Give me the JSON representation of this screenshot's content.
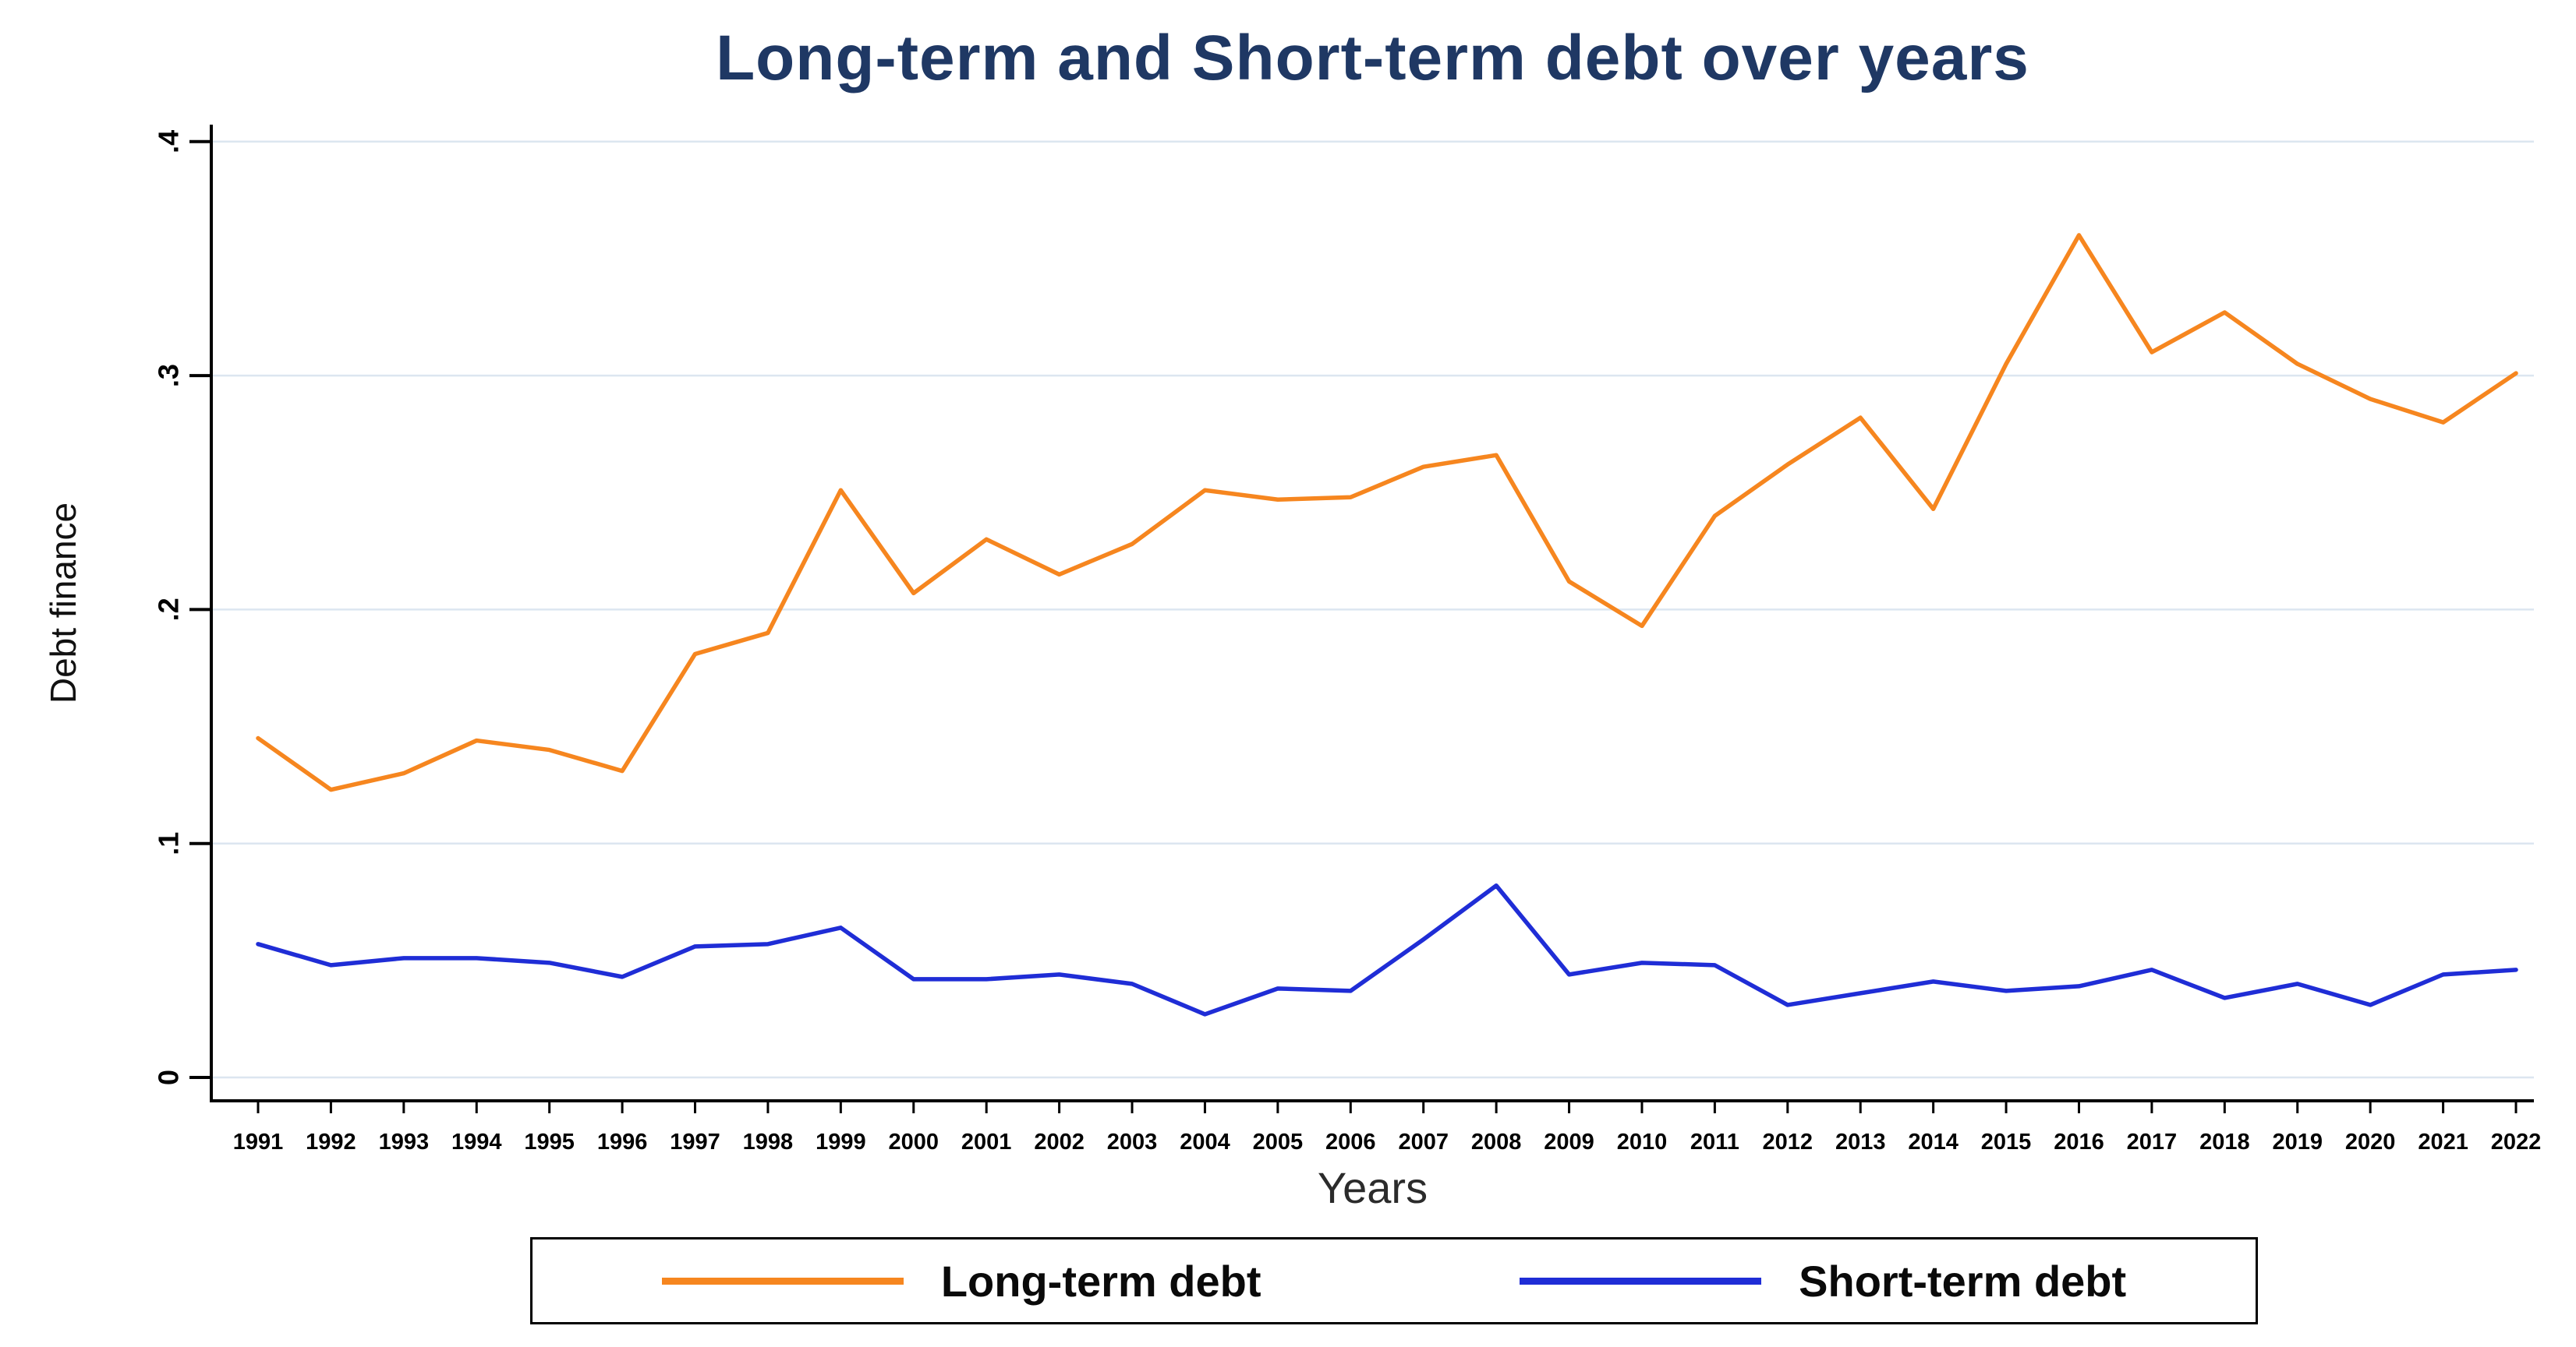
{
  "chart_data": {
    "type": "line",
    "title": "Long-term and Short-term debt over years",
    "xlabel": "Years",
    "ylabel": "Debt finance",
    "x": [
      1991,
      1992,
      1993,
      1994,
      1995,
      1996,
      1997,
      1998,
      1999,
      2000,
      2001,
      2002,
      2003,
      2004,
      2005,
      2006,
      2007,
      2008,
      2009,
      2010,
      2011,
      2012,
      2013,
      2014,
      2015,
      2016,
      2017,
      2018,
      2019,
      2020,
      2021,
      2022
    ],
    "series": [
      {
        "name": "Long-term debt",
        "color": "#F6861F",
        "values": [
          0.145,
          0.123,
          0.13,
          0.144,
          0.14,
          0.131,
          0.181,
          0.19,
          0.251,
          0.207,
          0.23,
          0.215,
          0.228,
          0.251,
          0.247,
          0.248,
          0.261,
          0.266,
          0.212,
          0.193,
          0.24,
          0.262,
          0.282,
          0.243,
          0.305,
          0.36,
          0.31,
          0.327,
          0.305,
          0.29,
          0.28,
          0.301
        ]
      },
      {
        "name": "Short-term debt",
        "color": "#1F2DD6",
        "values": [
          0.057,
          0.048,
          0.051,
          0.051,
          0.049,
          0.043,
          0.056,
          0.057,
          0.064,
          0.042,
          0.042,
          0.044,
          0.04,
          0.027,
          0.038,
          0.037,
          0.059,
          0.082,
          0.044,
          0.049,
          0.048,
          0.031,
          0.036,
          0.041,
          0.037,
          0.039,
          0.046,
          0.034,
          0.04,
          0.031,
          0.044,
          0.046
        ]
      }
    ],
    "ylim": [
      0,
      0.4
    ],
    "yticks": [
      0,
      0.1,
      0.2,
      0.3,
      0.4
    ],
    "ytick_labels": [
      "0",
      ".1",
      ".2",
      ".3",
      ".4"
    ],
    "grid": true,
    "legend_position": "bottom"
  },
  "colors": {
    "title": "#1F3864",
    "grid": "#dce6f0",
    "axis": "#000000",
    "background": "#ffffff"
  }
}
